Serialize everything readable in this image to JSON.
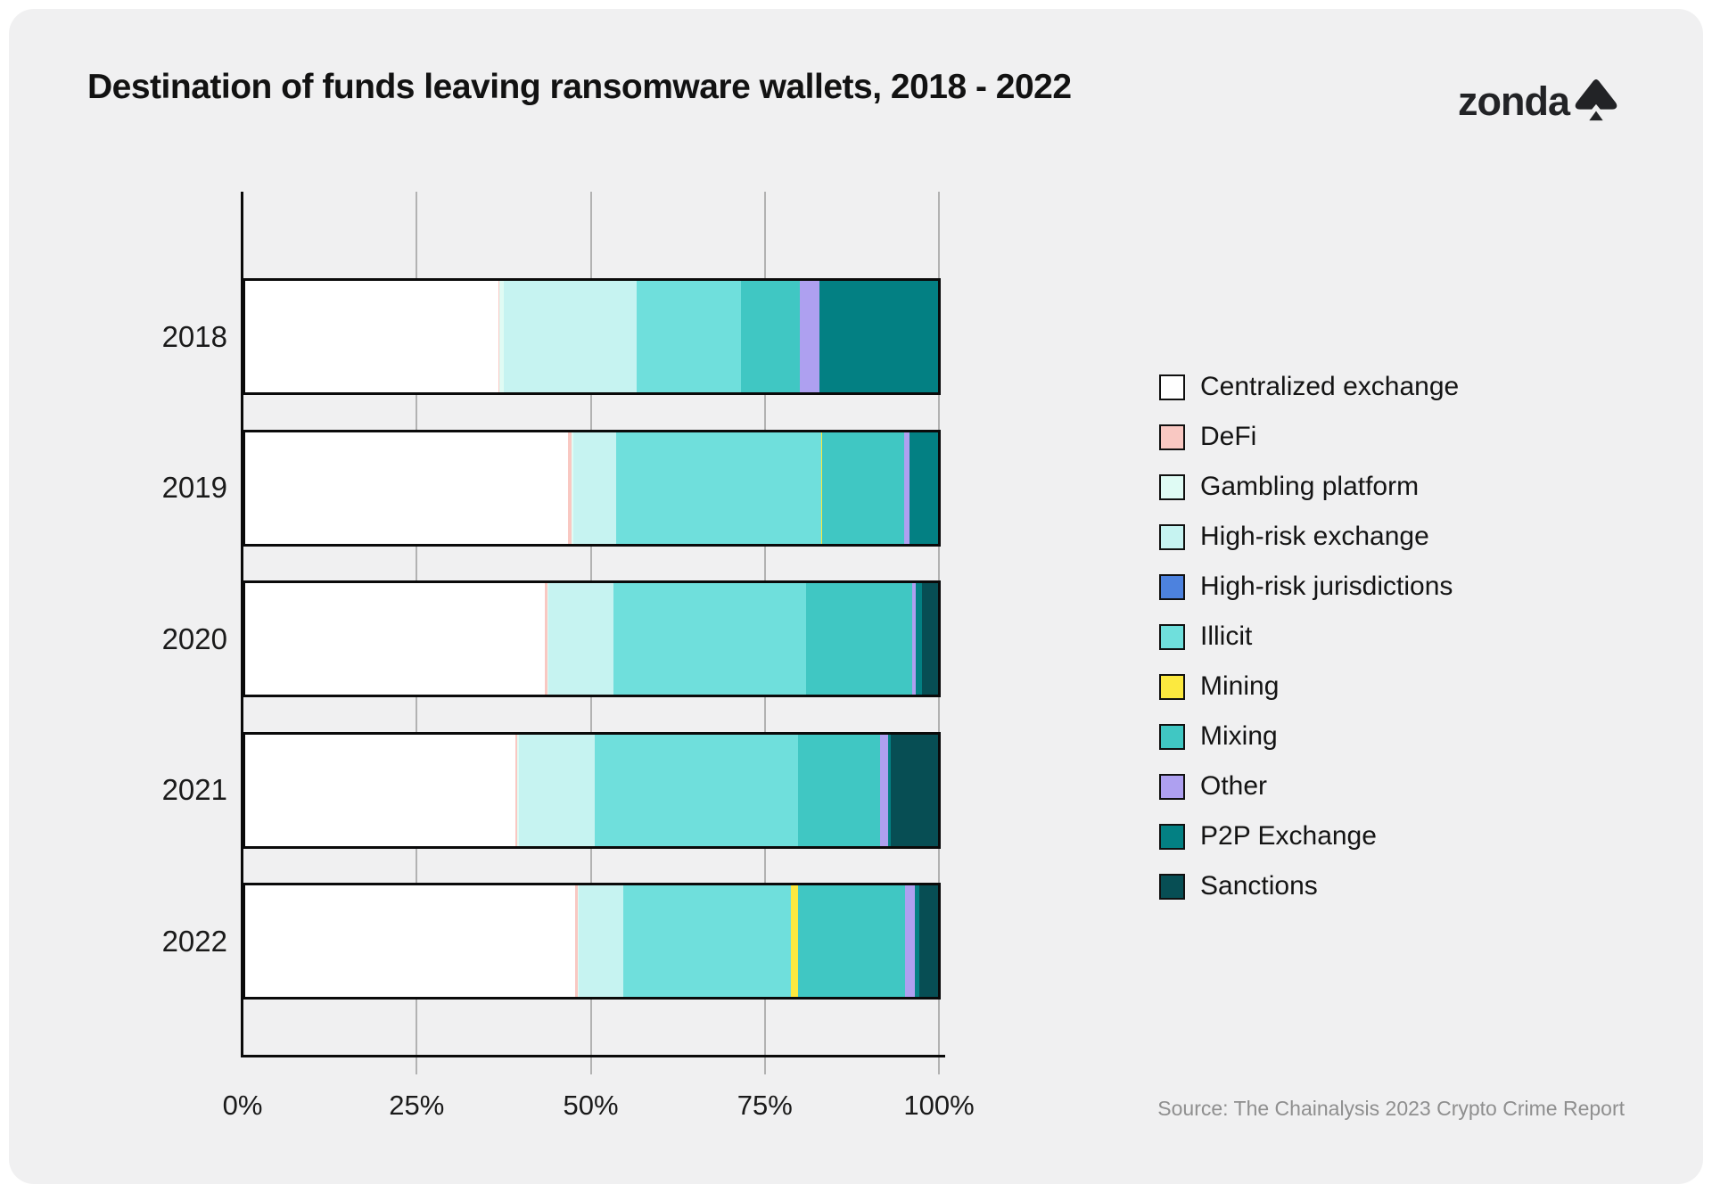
{
  "header": {
    "title": "Destination of funds leaving ransomware wallets, 2018 - 2022",
    "logo_text": "zonda"
  },
  "chart_data": {
    "type": "bar",
    "orientation": "horizontal",
    "stacked": true,
    "unit": "percent",
    "title": "Destination of funds leaving ransomware wallets, 2018 - 2022",
    "categories": [
      "2018",
      "2019",
      "2020",
      "2021",
      "2022"
    ],
    "series": [
      {
        "name": "Centralized exchange",
        "color": "#FFFFFF",
        "values": [
          36.5,
          46.6,
          43.2,
          39.0,
          47.6
        ]
      },
      {
        "name": "DeFi",
        "color": "#F9C8C2",
        "values": [
          0.2,
          0.5,
          0.4,
          0.2,
          0.4
        ]
      },
      {
        "name": "Gambling platform",
        "color": "#DFFBF4",
        "values": [
          0.6,
          0.2,
          0.2,
          0.3,
          0.2
        ]
      },
      {
        "name": "High-risk exchange",
        "color": "#C6F3F1",
        "values": [
          19.2,
          6.3,
          9.4,
          10.9,
          6.4
        ]
      },
      {
        "name": "High-risk jurisdictions",
        "color": "#4D82DE",
        "values": [
          0,
          0,
          0,
          0,
          0
        ]
      },
      {
        "name": "Illicit",
        "color": "#6FDFDC",
        "values": [
          15.0,
          29.5,
          27.7,
          29.4,
          24.2
        ]
      },
      {
        "name": "Mining",
        "color": "#FCE93F",
        "values": [
          0,
          0.2,
          0,
          0,
          1.0
        ]
      },
      {
        "name": "Mixing",
        "color": "#40C7C3",
        "values": [
          8.5,
          11.8,
          15.4,
          11.8,
          15.5
        ]
      },
      {
        "name": "Other",
        "color": "#AEA0F0",
        "values": [
          2.9,
          0.8,
          0.5,
          1.2,
          1.4
        ]
      },
      {
        "name": "P2P Exchange",
        "color": "#038083",
        "values": [
          17.1,
          4.1,
          0.9,
          0.4,
          0.6
        ]
      },
      {
        "name": "Sanctions",
        "color": "#074E54",
        "values": [
          0,
          0,
          2.3,
          6.8,
          2.7
        ]
      }
    ],
    "x_ticks": [
      "0%",
      "25%",
      "50%",
      "75%",
      "100%"
    ],
    "xlim": [
      0,
      100
    ],
    "grid": true,
    "legend_position": "right"
  },
  "footer": {
    "source": "Source: The Chainalysis 2023 Crypto Crime Report"
  }
}
